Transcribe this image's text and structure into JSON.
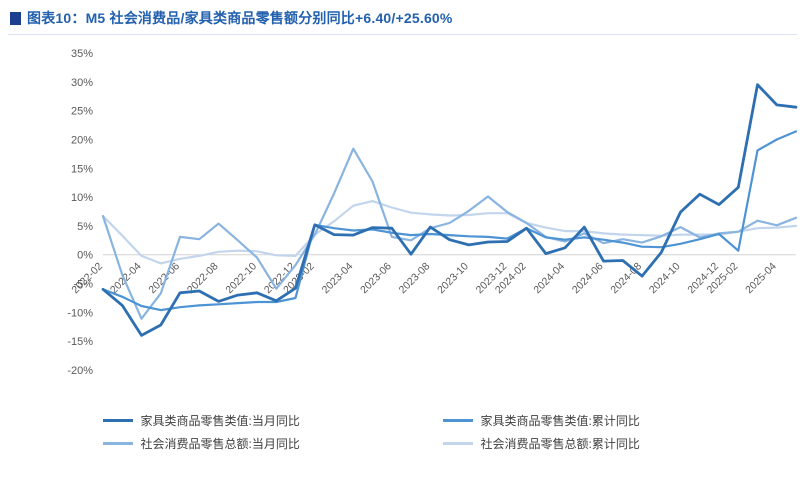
{
  "header": {
    "title": "图表10：M5 社会消费品/家具类商品零售额分别同比+6.40/+25.60%",
    "accent_color": "#2360ae",
    "bullet_color": "#1c3f8f"
  },
  "chart_data": {
    "type": "line",
    "title": "",
    "xlabel": "",
    "ylabel": "",
    "ylim": [
      -20,
      35
    ],
    "y_ticks": [
      35,
      30,
      25,
      20,
      15,
      10,
      5,
      0,
      -5,
      -10,
      -15,
      -20
    ],
    "y_tick_suffix": "%",
    "grid": "zero-line-only",
    "legend_position": "bottom",
    "axis_text_color": "#595959",
    "zero_line_color": "#d2d2d2",
    "x": [
      "2022-02",
      "2022-03",
      "2022-04",
      "2022-05",
      "2022-06",
      "2022-07",
      "2022-08",
      "2022-09",
      "2022-10",
      "2022-11",
      "2022-12",
      "2023-02",
      "2023-03",
      "2023-04",
      "2023-05",
      "2023-06",
      "2023-07",
      "2023-08",
      "2023-09",
      "2023-10",
      "2023-11",
      "2023-12",
      "2024-02",
      "2024-03",
      "2024-04",
      "2024-05",
      "2024-06",
      "2024-07",
      "2024-08",
      "2024-09",
      "2024-10",
      "2024-11",
      "2024-12",
      "2025-02",
      "2025-03",
      "2025-04",
      "2025-05"
    ],
    "x_tick_labels": [
      "2022-02",
      "2022-04",
      "2022-06",
      "2022-08",
      "2022-10",
      "2022-12",
      "2023-02",
      "2023-04",
      "2023-06",
      "2023-08",
      "2023-10",
      "2023-12",
      "2024-02",
      "2024-04",
      "2024-06",
      "2024-08",
      "2024-10",
      "2024-12",
      "2025-02",
      "2025-04"
    ],
    "series": [
      {
        "name": "家具类商品零售类值:当月同比",
        "color": "#2e6fb2",
        "width": 2.8,
        "values": [
          -6.0,
          -8.8,
          -14.0,
          -12.2,
          -6.6,
          -6.3,
          -8.1,
          -7.0,
          -6.6,
          -8.0,
          -5.8,
          5.2,
          3.5,
          3.4,
          4.7,
          4.6,
          0.1,
          4.8,
          2.6,
          1.7,
          2.2,
          2.3,
          4.6,
          0.2,
          1.2,
          4.8,
          -1.1,
          -1.0,
          -3.7,
          0.4,
          7.4,
          10.5,
          8.7,
          11.7,
          29.5,
          26.0,
          25.6
        ]
      },
      {
        "name": "家具类商品零售类值:累计同比",
        "color": "#4e93d4",
        "width": 2.2,
        "values": [
          -6.0,
          -7.3,
          -8.9,
          -9.6,
          -9.1,
          -8.8,
          -8.6,
          -8.4,
          -8.2,
          -8.2,
          -7.5,
          5.2,
          4.6,
          4.2,
          4.4,
          3.8,
          3.4,
          3.6,
          3.4,
          3.2,
          3.1,
          2.8,
          4.6,
          3.0,
          2.6,
          3.0,
          2.6,
          2.1,
          1.4,
          1.3,
          1.9,
          2.7,
          3.6,
          0.7,
          18.1,
          20.0,
          21.4
        ]
      },
      {
        "name": "社会消费品零售总额:当月同比",
        "color": "#8ab4e0",
        "width": 2.2,
        "values": [
          6.7,
          -3.5,
          -11.1,
          -6.7,
          3.1,
          2.7,
          5.4,
          2.5,
          -0.5,
          -5.9,
          -1.8,
          3.5,
          10.6,
          18.4,
          12.7,
          3.1,
          2.5,
          4.6,
          5.5,
          7.6,
          10.1,
          7.4,
          5.5,
          3.1,
          2.3,
          3.7,
          2.0,
          2.7,
          2.1,
          3.2,
          4.8,
          3.0,
          3.7,
          4.0,
          5.9,
          5.1,
          6.4
        ]
      },
      {
        "name": "社会消费品零售总额:累计同比",
        "color": "#c2d5ec",
        "width": 2.2,
        "values": [
          6.7,
          3.3,
          -0.2,
          -1.5,
          -0.7,
          -0.2,
          0.5,
          0.7,
          0.6,
          -0.1,
          -0.2,
          3.5,
          5.8,
          8.5,
          9.3,
          8.2,
          7.3,
          7.0,
          6.8,
          6.9,
          7.2,
          7.2,
          5.5,
          4.7,
          4.1,
          4.1,
          3.7,
          3.5,
          3.4,
          3.3,
          3.5,
          3.5,
          3.5,
          4.0,
          4.6,
          4.7,
          5.0
        ]
      }
    ]
  }
}
